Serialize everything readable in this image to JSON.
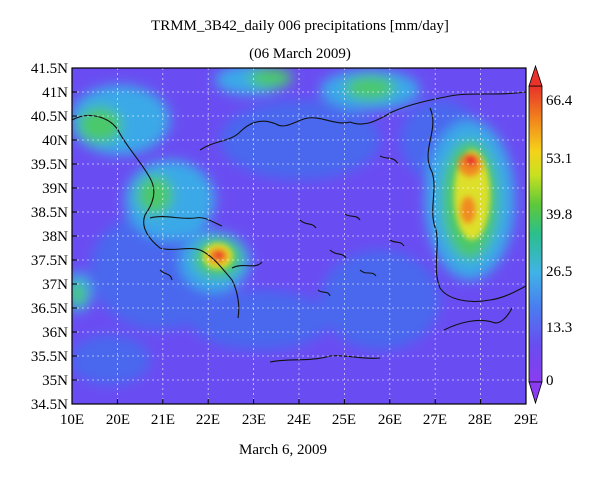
{
  "title": "TRMM_3B42_daily 006 precipitations [mm/day]",
  "subtitle": "(06 March 2009)",
  "footer": "March 6, 2009",
  "axes": {
    "y_ticks": [
      "41.5N",
      "41N",
      "40.5N",
      "40N",
      "39.5N",
      "39N",
      "38.5N",
      "38N",
      "37.5N",
      "37N",
      "36.5N",
      "36N",
      "35.5N",
      "35N",
      "34.5N"
    ],
    "x_ticks": [
      "10E",
      "20E",
      "21E",
      "22E",
      "23E",
      "24E",
      "25E",
      "26E",
      "27E",
      "28E",
      "29E"
    ]
  },
  "colorbar": {
    "labels": [
      "66.4",
      "53.1",
      "39.8",
      "26.5",
      "13.3",
      "0"
    ],
    "colors": [
      "#e8322a",
      "#f28a1c",
      "#f5d21a",
      "#c8e020",
      "#5ec83a",
      "#2bbf8c",
      "#3fb3e6",
      "#4a7cf0",
      "#6a4cf0",
      "#8a3cf0"
    ]
  },
  "map_colors": {
    "base": "#6a4df2",
    "low": "#4a68ee",
    "mid": "#3ba9e8",
    "green": "#4cc86a",
    "yellow": "#dde02a",
    "orange": "#f08a20",
    "red": "#e8322a"
  }
}
